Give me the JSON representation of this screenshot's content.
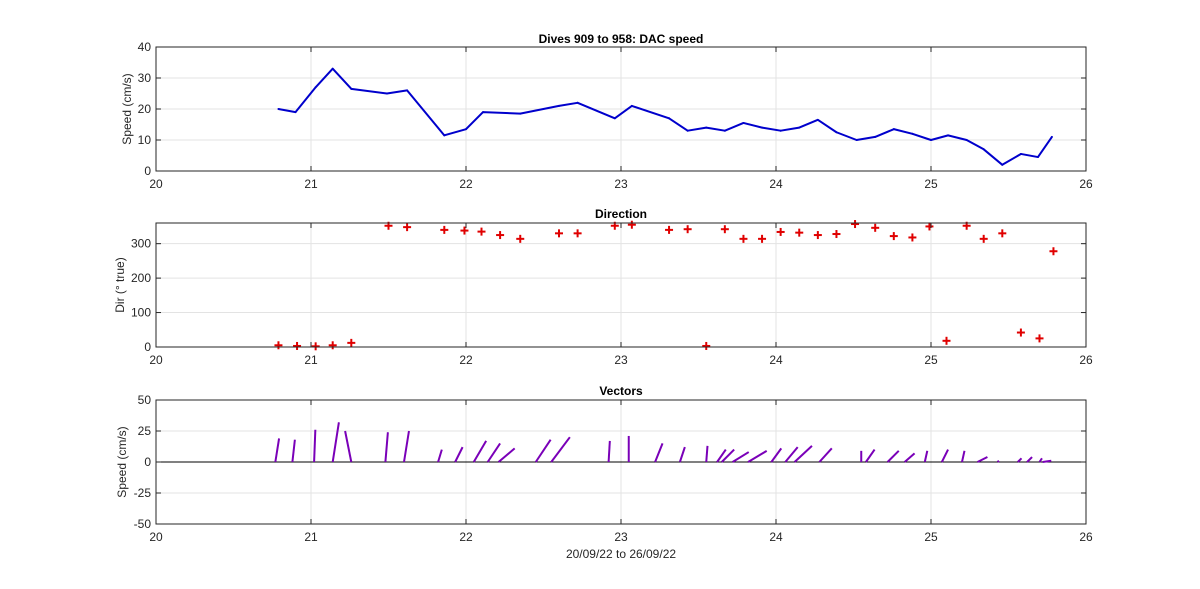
{
  "colors": {
    "speed_line": "#0000cc",
    "direction_markers": "#e00000",
    "vectors": "#7a00b8",
    "grid": "#e3e3e3",
    "axis": "#262626"
  },
  "chart_data": [
    {
      "type": "line",
      "title": "Dives 909 to 958: DAC speed",
      "xlabel": "",
      "ylabel": "Speed (cm/s)",
      "xlim": [
        20,
        26
      ],
      "ylim": [
        0,
        40
      ],
      "xticks": [
        "20",
        "21",
        "22",
        "23",
        "24",
        "25",
        "26"
      ],
      "yticks": [
        "0",
        "10",
        "20",
        "30",
        "40"
      ],
      "grid": true,
      "x": [
        20.79,
        20.9,
        21.03,
        21.14,
        21.26,
        21.49,
        21.62,
        21.86,
        22.0,
        22.11,
        22.35,
        22.6,
        22.72,
        22.96,
        23.07,
        23.31,
        23.43,
        23.55,
        23.67,
        23.79,
        23.91,
        24.03,
        24.15,
        24.27,
        24.39,
        24.52,
        24.64,
        24.76,
        24.88,
        25.0,
        25.11,
        25.23,
        25.34,
        25.46,
        25.58,
        25.69,
        25.78
      ],
      "values": [
        20,
        19,
        27,
        33,
        26.5,
        25,
        26,
        11.5,
        13.5,
        19,
        18.5,
        21,
        22,
        17,
        21,
        17,
        13,
        14,
        13,
        15.5,
        14,
        13,
        14,
        16.5,
        12.5,
        10,
        11,
        13.5,
        12,
        10,
        11.5,
        10,
        7,
        2,
        5.5,
        4.5,
        11
      ]
    },
    {
      "type": "scatter",
      "title": "Direction",
      "xlabel": "",
      "ylabel": "Dir (° true)",
      "xlim": [
        20,
        26
      ],
      "ylim": [
        0,
        360
      ],
      "xticks": [
        "20",
        "21",
        "22",
        "23",
        "24",
        "25",
        "26"
      ],
      "yticks": [
        "0",
        "100",
        "200",
        "300"
      ],
      "grid": true,
      "marker": "+",
      "x": [
        20.79,
        20.91,
        21.03,
        21.14,
        21.26,
        21.5,
        21.62,
        21.86,
        21.99,
        22.1,
        22.22,
        22.35,
        22.6,
        22.72,
        22.96,
        23.07,
        23.31,
        23.43,
        23.55,
        23.67,
        23.79,
        23.91,
        24.03,
        24.15,
        24.27,
        24.39,
        24.51,
        24.64,
        24.76,
        24.88,
        24.99,
        25.1,
        25.23,
        25.34,
        25.46,
        25.58,
        25.7,
        25.79
      ],
      "values": [
        5,
        3,
        2,
        5,
        12,
        352,
        348,
        340,
        338,
        335,
        325,
        314,
        330,
        330,
        352,
        355,
        340,
        342,
        3,
        342,
        314,
        314,
        334,
        332,
        325,
        328,
        357,
        346,
        322,
        318,
        350,
        18,
        352,
        314,
        330,
        42,
        25,
        278
      ]
    },
    {
      "type": "vector",
      "title": "Vectors",
      "xlabel": "20/09/22 to 26/09/22",
      "ylabel": "Speed (cm/s)",
      "xlim": [
        20,
        26
      ],
      "ylim": [
        -50,
        50
      ],
      "xticks": [
        "20",
        "21",
        "22",
        "23",
        "24",
        "25",
        "26"
      ],
      "yticks": [
        "-50",
        "-25",
        "0",
        "25",
        "50"
      ],
      "grid": true,
      "x": [
        20.77,
        20.88,
        21.02,
        21.14,
        21.26,
        21.48,
        21.6,
        21.82,
        21.93,
        22.05,
        22.14,
        22.21,
        22.45,
        22.55,
        22.92,
        23.05,
        23.22,
        23.38,
        23.55,
        23.62,
        23.65,
        23.72,
        23.82,
        23.97,
        24.06,
        24.12,
        24.28,
        24.55,
        24.58,
        24.72,
        24.83,
        24.96,
        25.07,
        25.2,
        25.3,
        25.43,
        25.56,
        25.62,
        25.7,
        25.72
      ],
      "u": [
        3,
        2,
        1,
        5,
        -5,
        2,
        4,
        3,
        6,
        10,
        10,
        13,
        12,
        15,
        1,
        0,
        6,
        4,
        1,
        7,
        10,
        13,
        15,
        8,
        10,
        14,
        10,
        0,
        7,
        9,
        8,
        2,
        5,
        2,
        8,
        1,
        3,
        4,
        2,
        7
      ],
      "v": [
        19,
        18,
        26,
        32,
        25,
        24,
        25,
        10,
        12,
        17,
        15,
        11,
        18,
        20,
        17,
        21,
        15,
        12,
        13,
        10,
        10,
        8,
        9,
        11,
        12,
        13,
        11,
        9,
        10,
        9,
        7,
        9,
        10,
        9,
        4,
        1,
        3,
        4,
        3,
        1
      ]
    }
  ]
}
